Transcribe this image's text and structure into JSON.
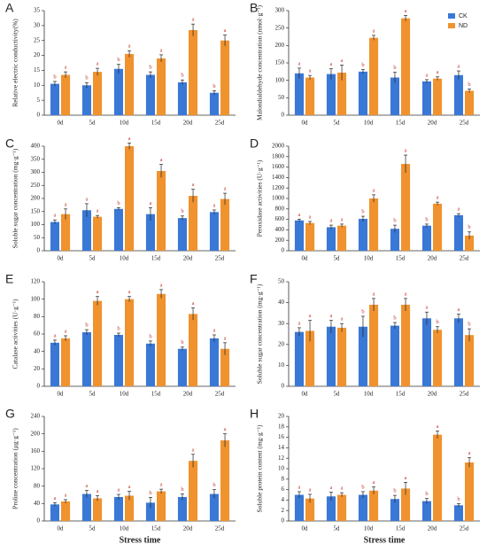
{
  "chart_data": [
    {
      "type": "bar",
      "panel": "A",
      "ylabel": "Relative electric conductivity(%)",
      "categories": [
        "0d",
        "5d",
        "10d",
        "15d",
        "20d",
        "25d"
      ],
      "ylim": [
        0,
        35
      ],
      "yticks": [
        0,
        5,
        10,
        15,
        20,
        25,
        30,
        35
      ],
      "series": [
        {
          "color": "#3a78d6",
          "values": [
            10.5,
            10,
            15.5,
            13.5,
            11,
            7.5
          ],
          "errors": [
            0.8,
            0.9,
            1.5,
            1,
            0.8,
            0.7
          ],
          "letters": [
            "b",
            "b",
            "b",
            "b",
            "b",
            "b"
          ]
        },
        {
          "color": "#f0922e",
          "values": [
            13.5,
            14.5,
            20.5,
            19,
            28.5,
            25
          ],
          "errors": [
            1,
            1.2,
            1.1,
            1.2,
            2,
            1.8
          ],
          "letters": [
            "a",
            "a",
            "a",
            "a",
            "a",
            "a"
          ]
        }
      ]
    },
    {
      "type": "bar",
      "panel": "B",
      "ylabel": "Malondialdehyde concentration (nmol·g⁻¹)",
      "categories": [
        "0d",
        "5d",
        "10d",
        "15d",
        "20d",
        "25d"
      ],
      "ylim": [
        0,
        300
      ],
      "yticks": [
        0,
        50,
        100,
        150,
        200,
        250,
        300
      ],
      "legend": "upper right",
      "series": [
        {
          "name": "CK",
          "color": "#3a78d6",
          "values": [
            120,
            118,
            125,
            108,
            97,
            115
          ],
          "errors": [
            15,
            15,
            6,
            15,
            5,
            12
          ],
          "letters": [
            "a",
            "a",
            "b",
            "b",
            "a",
            "a"
          ]
        },
        {
          "name": "ND",
          "color": "#f0922e",
          "values": [
            108,
            122,
            222,
            278,
            105,
            70
          ],
          "errors": [
            6,
            22,
            7,
            8,
            5,
            5
          ],
          "letters": [
            "a",
            "a",
            "a",
            "a",
            "a",
            "b"
          ]
        }
      ]
    },
    {
      "type": "bar",
      "panel": "C",
      "ylabel": "Soluble sugar concentration (mg·g⁻¹)",
      "categories": [
        "0d",
        "5d",
        "10d",
        "15d",
        "20d",
        "25d"
      ],
      "ylim": [
        0,
        400
      ],
      "yticks": [
        0,
        50,
        100,
        150,
        200,
        250,
        300,
        350,
        400
      ],
      "series": [
        {
          "color": "#3a78d6",
          "values": [
            110,
            155,
            160,
            140,
            125,
            148
          ],
          "errors": [
            8,
            25,
            5,
            25,
            8,
            8
          ],
          "letters": [
            "a",
            "a",
            "b",
            "a",
            "b",
            "a"
          ]
        },
        {
          "color": "#f0922e",
          "values": [
            140,
            130,
            400,
            305,
            210,
            198
          ],
          "errors": [
            20,
            5,
            12,
            25,
            25,
            22
          ],
          "letters": [
            "a",
            "a",
            "a",
            "a",
            "a",
            "a"
          ]
        }
      ]
    },
    {
      "type": "bar",
      "panel": "D",
      "ylabel": "Peroxidase activities (U·g⁻¹)",
      "categories": [
        "0d",
        "5d",
        "10d",
        "15d",
        "20d",
        "25d"
      ],
      "ylim": [
        0,
        2000
      ],
      "yticks": [
        0,
        200,
        400,
        600,
        800,
        1000,
        1200,
        1400,
        1600,
        1800,
        2000
      ],
      "series": [
        {
          "color": "#3a78d6",
          "values": [
            580,
            450,
            610,
            420,
            480,
            680
          ],
          "errors": [
            25,
            40,
            50,
            70,
            30,
            30
          ],
          "letters": [
            "a",
            "a",
            "b",
            "b",
            "b",
            "a"
          ]
        },
        {
          "color": "#f0922e",
          "values": [
            530,
            480,
            1000,
            1660,
            900,
            290
          ],
          "errors": [
            30,
            30,
            70,
            170,
            30,
            70
          ],
          "letters": [
            "a",
            "a",
            "a",
            "a",
            "a",
            "b"
          ]
        }
      ]
    },
    {
      "type": "bar",
      "panel": "E",
      "ylabel": "Catalase activities (U·g⁻¹)",
      "categories": [
        "0d",
        "5d",
        "10d",
        "15d",
        "20d",
        "25d"
      ],
      "ylim": [
        0,
        120
      ],
      "yticks": [
        0,
        20,
        40,
        60,
        80,
        100,
        120
      ],
      "series": [
        {
          "color": "#3a78d6",
          "values": [
            50,
            62,
            59,
            49,
            43,
            55
          ],
          "errors": [
            3,
            3,
            2,
            3,
            2,
            4
          ],
          "letters": [
            "a",
            "b",
            "b",
            "b",
            "b",
            "a"
          ]
        },
        {
          "color": "#f0922e",
          "values": [
            55,
            98,
            100,
            106,
            83,
            43
          ],
          "errors": [
            3,
            5,
            3,
            5,
            7,
            7
          ],
          "letters": [
            "a",
            "a",
            "a",
            "a",
            "a",
            "a"
          ]
        }
      ]
    },
    {
      "type": "bar",
      "panel": "F",
      "ylabel": "Soluble sugar concentration (mg·g⁻¹)",
      "categories": [
        "0d",
        "5d",
        "10d",
        "15d",
        "20d",
        "25d"
      ],
      "ylim": [
        0,
        50
      ],
      "yticks": [
        0,
        10,
        20,
        30,
        40,
        50
      ],
      "series": [
        {
          "color": "#3a78d6",
          "values": [
            26,
            28.5,
            28.5,
            29,
            32.5,
            32.5
          ],
          "errors": [
            2,
            3,
            5,
            1.5,
            3,
            2
          ],
          "letters": [
            "a",
            "a",
            "b",
            "b",
            "a",
            "a"
          ]
        },
        {
          "color": "#f0922e",
          "values": [
            26.5,
            28,
            39,
            39,
            27,
            24.5
          ],
          "errors": [
            5,
            2,
            3,
            3,
            1.5,
            3
          ],
          "letters": [
            "a",
            "a",
            "a",
            "a",
            "b",
            "b"
          ]
        }
      ]
    },
    {
      "type": "bar",
      "panel": "G",
      "ylabel": "Proline concentration (μg·g⁻¹)",
      "xlabel": "Stress time",
      "categories": [
        "0d",
        "5d",
        "10d",
        "15d",
        "20d",
        "25d"
      ],
      "ylim": [
        0,
        240
      ],
      "yticks": [
        0,
        40,
        80,
        120,
        160,
        200,
        240
      ],
      "series": [
        {
          "color": "#3a78d6",
          "values": [
            38,
            62,
            55,
            42,
            55,
            62
          ],
          "errors": [
            4,
            8,
            6,
            12,
            7,
            10
          ],
          "letters": [
            "a",
            "a",
            "a",
            "b",
            "b",
            "b"
          ]
        },
        {
          "color": "#f0922e",
          "values": [
            45,
            52,
            58,
            68,
            138,
            185
          ],
          "errors": [
            4,
            6,
            10,
            5,
            15,
            15
          ],
          "letters": [
            "a",
            "a",
            "a",
            "a",
            "a",
            "a"
          ]
        }
      ]
    },
    {
      "type": "bar",
      "panel": "H",
      "ylabel": "Soluble protein content (mg·g⁻¹)",
      "xlabel": "Stress time",
      "categories": [
        "0d",
        "5d",
        "10d",
        "15d",
        "20d",
        "25d"
      ],
      "ylim": [
        0,
        20
      ],
      "yticks": [
        0,
        2,
        4,
        6,
        8,
        10,
        12,
        14,
        16,
        18,
        20
      ],
      "series": [
        {
          "color": "#3a78d6",
          "values": [
            5,
            4.7,
            5,
            4.2,
            3.8,
            3
          ],
          "errors": [
            0.6,
            0.8,
            0.6,
            0.7,
            0.5,
            0.3
          ],
          "letters": [
            "a",
            "a",
            "b",
            "b",
            "b",
            "b"
          ]
        },
        {
          "color": "#f0922e",
          "values": [
            4.3,
            5,
            5.8,
            6.2,
            16.5,
            11.2
          ],
          "errors": [
            0.8,
            0.4,
            0.7,
            1.2,
            0.7,
            0.9
          ],
          "letters": [
            "a",
            "a",
            "a",
            "a",
            "a",
            "a"
          ]
        }
      ]
    }
  ]
}
